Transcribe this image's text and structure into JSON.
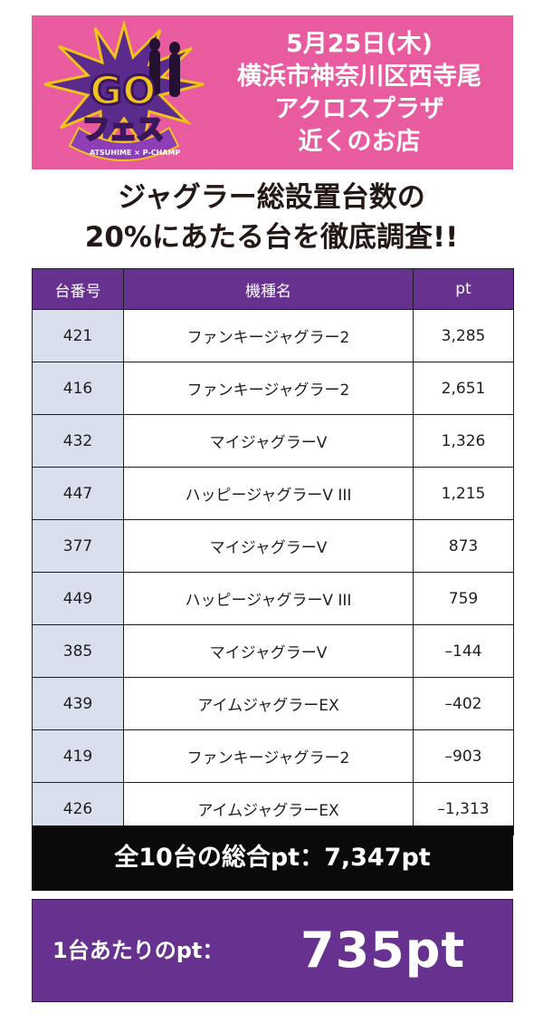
{
  "header": {
    "logo_text": "GOフェス",
    "logo_sub": "ATSUHIME × P-CHAMP",
    "lines": [
      "5月25日(木)",
      "横浜市神奈川区西寺尾",
      "アクロスプラザ",
      "近くのお店"
    ],
    "colors": {
      "background": "#e85b9f",
      "logo_purple": "#5a2a8c",
      "logo_gold": "#f0c21a"
    }
  },
  "headline": {
    "line1": "ジャグラー総設置台数の",
    "line2": "20%にあたる台を徹底調査!!"
  },
  "table": {
    "headers": [
      "台番号",
      "機種名",
      "pt"
    ],
    "rows": [
      {
        "number": "421",
        "machine": "ファンキージャグラー2",
        "pt": "3,285"
      },
      {
        "number": "416",
        "machine": "ファンキージャグラー2",
        "pt": "2,651"
      },
      {
        "number": "432",
        "machine": "マイジャグラーV",
        "pt": "1,326"
      },
      {
        "number": "447",
        "machine": "ハッピージャグラーV III",
        "pt": "1,215"
      },
      {
        "number": "377",
        "machine": "マイジャグラーV",
        "pt": "873"
      },
      {
        "number": "449",
        "machine": "ハッピージャグラーV III",
        "pt": "759"
      },
      {
        "number": "385",
        "machine": "マイジャグラーV",
        "pt": "–144"
      },
      {
        "number": "439",
        "machine": "アイムジャグラーEX",
        "pt": "–402"
      },
      {
        "number": "419",
        "machine": "ファンキージャグラー2",
        "pt": "–903"
      },
      {
        "number": "426",
        "machine": "アイムジャグラーEX",
        "pt": "–1,313"
      }
    ],
    "colors": {
      "header_bg": "#66318f",
      "number_cell_bg": "#dadfee"
    }
  },
  "summary": {
    "total": "全10台の総合pt：7,347pt",
    "avg_label": "1台あたりのpt：",
    "avg_value": "735pt"
  }
}
